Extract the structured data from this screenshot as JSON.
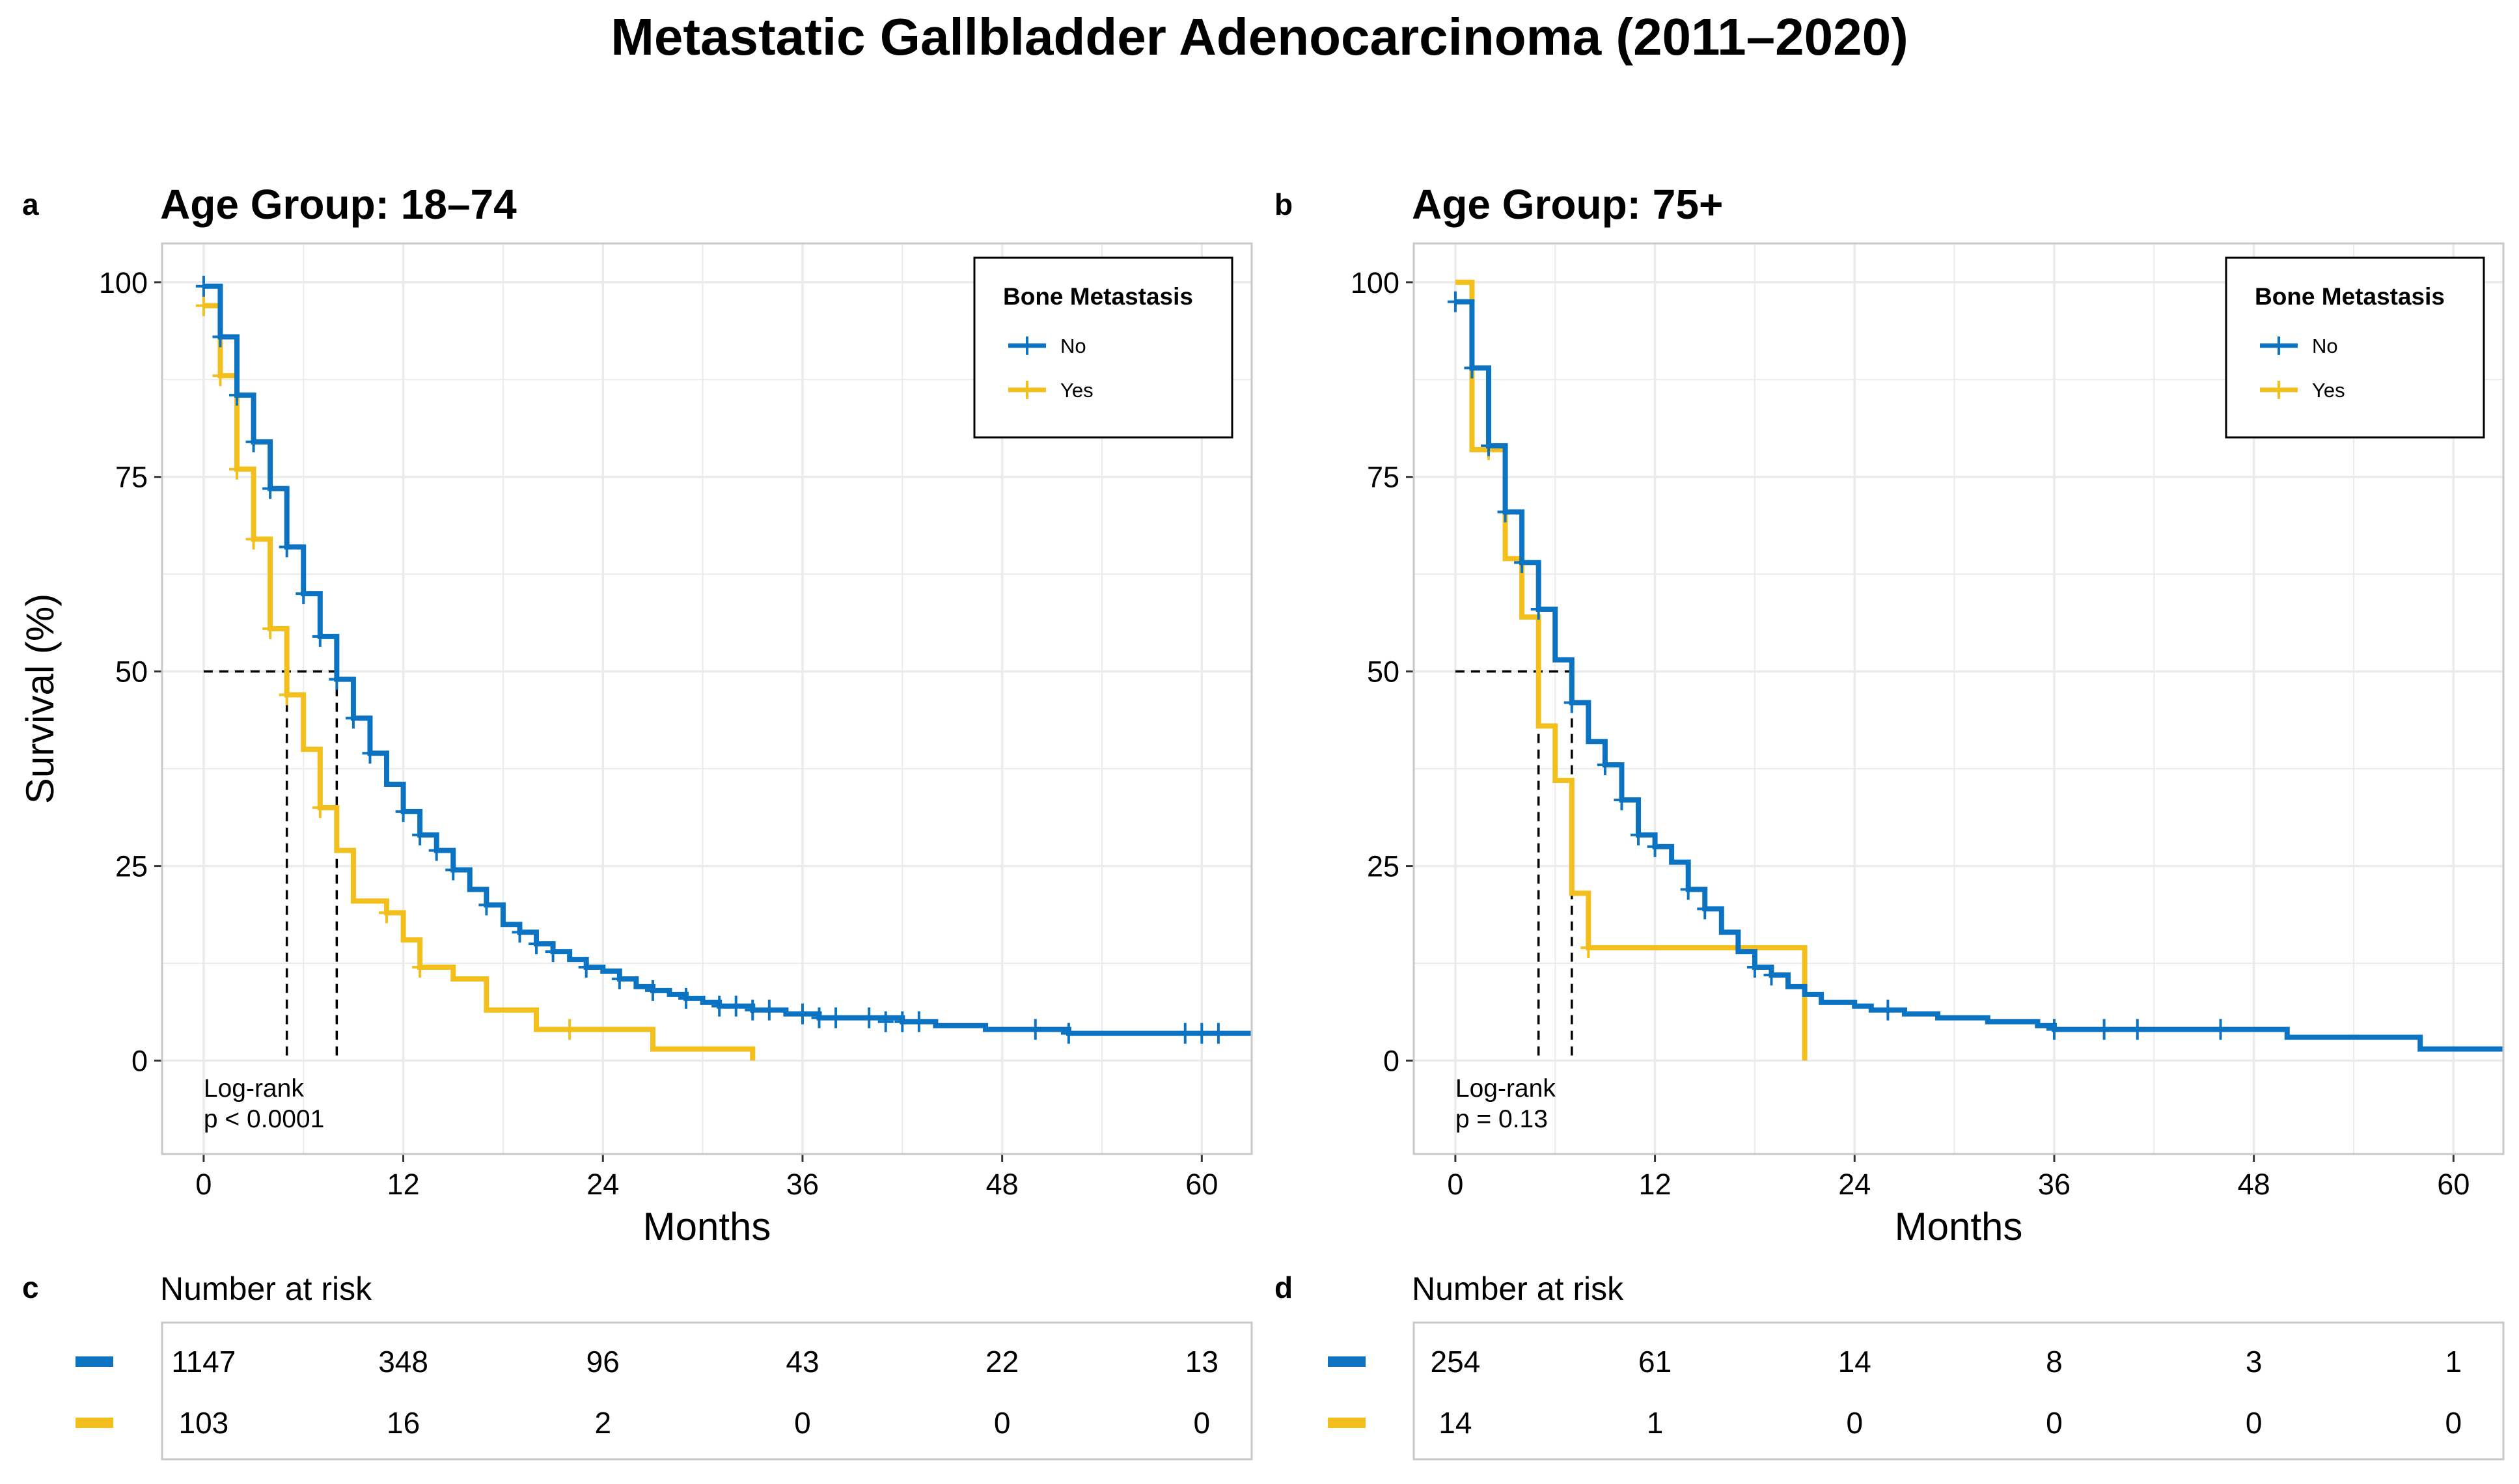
{
  "title": "Metastatic Gallbladder Adenocarcinoma (2011–2020)",
  "colors": {
    "no": "#0b73c2",
    "yes": "#f2bf1c",
    "grid": "#ebebeb",
    "border": "#c8c8c8"
  },
  "chart_data": [
    {
      "type": "line",
      "subtype": "kaplan-meier",
      "panel_label": "a",
      "title": "Age Group: 18–74",
      "xlabel": "Months",
      "ylabel": "Survival (%)",
      "xlim": [
        -2.5,
        63
      ],
      "ylim": [
        -12,
        105
      ],
      "x_ticks": [
        0,
        12,
        24,
        36,
        48,
        60
      ],
      "y_ticks": [
        0,
        25,
        50,
        75,
        100
      ],
      "legend": {
        "title": "Bone Metastasis",
        "position": "top-right",
        "entries": [
          "No",
          "Yes"
        ]
      },
      "annotation": [
        "Log-rank",
        "p < 0.0001"
      ],
      "median_lines": [
        {
          "series": "Yes",
          "x": 5
        },
        {
          "series": "No",
          "x": 8
        }
      ],
      "series": [
        {
          "name": "No",
          "steps": [
            [
              0,
              99.5
            ],
            [
              1,
              93
            ],
            [
              2,
              85.5
            ],
            [
              3,
              79.5
            ],
            [
              4,
              73.5
            ],
            [
              5,
              66
            ],
            [
              6,
              60
            ],
            [
              7,
              54.5
            ],
            [
              8,
              49
            ],
            [
              9,
              44
            ],
            [
              10,
              39.5
            ],
            [
              11,
              35.5
            ],
            [
              12,
              32
            ],
            [
              13,
              29
            ],
            [
              14,
              27
            ],
            [
              15,
              24.5
            ],
            [
              16,
              22
            ],
            [
              17,
              20
            ],
            [
              18,
              17.5
            ],
            [
              19,
              16.5
            ],
            [
              20,
              15
            ],
            [
              21,
              14
            ],
            [
              22,
              13
            ],
            [
              23,
              12
            ],
            [
              24,
              11.5
            ],
            [
              25,
              10.5
            ],
            [
              26,
              9.5
            ],
            [
              27,
              9
            ],
            [
              28,
              8.5
            ],
            [
              29,
              8
            ],
            [
              30,
              7.5
            ],
            [
              31,
              7
            ],
            [
              33,
              6.5
            ],
            [
              35,
              6
            ],
            [
              37,
              5.5
            ],
            [
              42,
              5
            ],
            [
              44,
              4.5
            ],
            [
              47,
              4
            ],
            [
              52,
              3.5
            ],
            [
              63,
              3.5
            ]
          ],
          "censors": [
            [
              0,
              99.5
            ],
            [
              1,
              93
            ],
            [
              2,
              85.5
            ],
            [
              3,
              79.5
            ],
            [
              4,
              73.5
            ],
            [
              5,
              66
            ],
            [
              6,
              60
            ],
            [
              7,
              54.5
            ],
            [
              8,
              49
            ],
            [
              9,
              44
            ],
            [
              10,
              39.5
            ],
            [
              12,
              32
            ],
            [
              13,
              29
            ],
            [
              14,
              27
            ],
            [
              15,
              24.5
            ],
            [
              17,
              20
            ],
            [
              19,
              16.5
            ],
            [
              20,
              15
            ],
            [
              21,
              14
            ],
            [
              23,
              12
            ],
            [
              25,
              10.5
            ],
            [
              27,
              9
            ],
            [
              29,
              8
            ],
            [
              31,
              7
            ],
            [
              32,
              7
            ],
            [
              33,
              6.5
            ],
            [
              34,
              6.5
            ],
            [
              36,
              6
            ],
            [
              37,
              5.5
            ],
            [
              38,
              5.5
            ],
            [
              40,
              5.5
            ],
            [
              41,
              5
            ],
            [
              42,
              5
            ],
            [
              43,
              5
            ],
            [
              50,
              4
            ],
            [
              52,
              3.5
            ],
            [
              59,
              3.5
            ],
            [
              60,
              3.5
            ],
            [
              61,
              3.5
            ]
          ]
        },
        {
          "name": "Yes",
          "steps": [
            [
              0,
              97
            ],
            [
              1,
              88
            ],
            [
              2,
              76
            ],
            [
              3,
              67
            ],
            [
              4,
              55.5
            ],
            [
              5,
              47
            ],
            [
              6,
              40
            ],
            [
              7,
              32.5
            ],
            [
              8,
              27
            ],
            [
              9,
              20.5
            ],
            [
              11,
              19
            ],
            [
              12,
              15.5
            ],
            [
              13,
              12
            ],
            [
              15,
              10.5
            ],
            [
              17,
              6.5
            ],
            [
              20,
              4
            ],
            [
              27,
              1.5
            ],
            [
              33,
              1.5
            ],
            [
              33,
              0
            ]
          ],
          "censors": [
            [
              0,
              97
            ],
            [
              1,
              88
            ],
            [
              2,
              76
            ],
            [
              3,
              67
            ],
            [
              4,
              55.5
            ],
            [
              5,
              47
            ],
            [
              7,
              32.5
            ],
            [
              11,
              19
            ],
            [
              13,
              12
            ],
            [
              22,
              4
            ]
          ]
        }
      ],
      "risk_table": {
        "panel_label": "c",
        "heading": "Number at risk",
        "times": [
          0,
          12,
          24,
          36,
          48,
          60
        ],
        "rows": [
          {
            "series": "No",
            "values": [
              "1147",
              "348",
              "96",
              "43",
              "22",
              "13"
            ]
          },
          {
            "series": "Yes",
            "values": [
              "103",
              "16",
              "2",
              "0",
              "0",
              "0"
            ]
          }
        ]
      }
    },
    {
      "type": "line",
      "subtype": "kaplan-meier",
      "panel_label": "b",
      "title": "Age Group: 75+",
      "xlabel": "Months",
      "ylabel": "",
      "xlim": [
        -2.5,
        63
      ],
      "ylim": [
        -12,
        105
      ],
      "x_ticks": [
        0,
        12,
        24,
        36,
        48,
        60
      ],
      "y_ticks": [
        0,
        25,
        50,
        75,
        100
      ],
      "legend": {
        "title": "Bone Metastasis",
        "position": "top-right",
        "entries": [
          "No",
          "Yes"
        ]
      },
      "annotation": [
        "Log-rank",
        "p = 0.13"
      ],
      "median_lines": [
        {
          "series": "Yes",
          "x": 5
        },
        {
          "series": "No",
          "x": 7
        }
      ],
      "series": [
        {
          "name": "No",
          "steps": [
            [
              0,
              97.5
            ],
            [
              1,
              89
            ],
            [
              2,
              79
            ],
            [
              3,
              70.5
            ],
            [
              4,
              64
            ],
            [
              5,
              58
            ],
            [
              6,
              51.5
            ],
            [
              7,
              46
            ],
            [
              8,
              41
            ],
            [
              9,
              38
            ],
            [
              10,
              33.5
            ],
            [
              11,
              29
            ],
            [
              12,
              27.5
            ],
            [
              13,
              25.5
            ],
            [
              14,
              22
            ],
            [
              15,
              19.5
            ],
            [
              16,
              16.5
            ],
            [
              17,
              14
            ],
            [
              18,
              12
            ],
            [
              19,
              11
            ],
            [
              20,
              9.5
            ],
            [
              21,
              8.5
            ],
            [
              22,
              7.5
            ],
            [
              24,
              7
            ],
            [
              25,
              6.5
            ],
            [
              27,
              6
            ],
            [
              29,
              5.5
            ],
            [
              32,
              5
            ],
            [
              35,
              4.5
            ],
            [
              36,
              4
            ],
            [
              50,
              3
            ],
            [
              58,
              1.5
            ],
            [
              63,
              1.5
            ]
          ],
          "censors": [
            [
              0,
              97.5
            ],
            [
              1,
              89
            ],
            [
              2,
              79
            ],
            [
              3,
              70.5
            ],
            [
              4,
              64
            ],
            [
              5,
              58
            ],
            [
              7,
              46
            ],
            [
              9,
              38
            ],
            [
              10,
              33.5
            ],
            [
              11,
              29
            ],
            [
              12,
              27.5
            ],
            [
              14,
              22
            ],
            [
              15,
              19.5
            ],
            [
              18,
              12
            ],
            [
              19,
              11
            ],
            [
              26,
              6.5
            ],
            [
              36,
              4
            ],
            [
              39,
              4
            ],
            [
              41,
              4
            ],
            [
              46,
              4
            ]
          ]
        },
        {
          "name": "Yes",
          "steps": [
            [
              0,
              100
            ],
            [
              1,
              78.5
            ],
            [
              3,
              64.5
            ],
            [
              4,
              57
            ],
            [
              5,
              43
            ],
            [
              6,
              36
            ],
            [
              7,
              21.5
            ],
            [
              8,
              14.5
            ],
            [
              21,
              14.5
            ],
            [
              21,
              0
            ]
          ],
          "censors": [
            [
              2,
              78.5
            ],
            [
              8,
              14.5
            ]
          ]
        }
      ],
      "risk_table": {
        "panel_label": "d",
        "heading": "Number at risk",
        "times": [
          0,
          12,
          24,
          36,
          48,
          60
        ],
        "rows": [
          {
            "series": "No",
            "values": [
              "254",
              "61",
              "14",
              "8",
              "3",
              "1"
            ]
          },
          {
            "series": "Yes",
            "values": [
              "14",
              "1",
              "0",
              "0",
              "0",
              "0"
            ]
          }
        ]
      }
    }
  ]
}
